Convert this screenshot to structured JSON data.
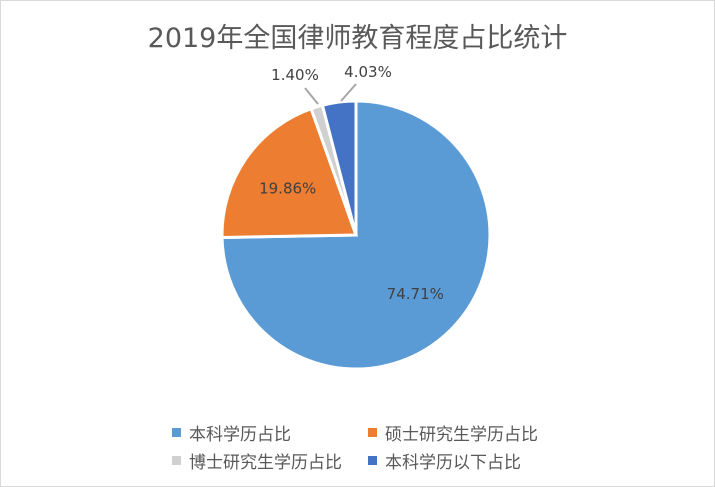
{
  "chart_data": {
    "type": "pie",
    "title": "2019年全国律师教育程度占比统计",
    "categories": [
      "本科学历占比",
      "硕士研究生学历占比",
      "博士研究生学历占比",
      "本科学历以下占比"
    ],
    "values": [
      74.71,
      19.86,
      1.4,
      4.03
    ],
    "labels": [
      "74.71%",
      "19.86%",
      "1.40%",
      "4.03%"
    ],
    "colors": [
      "#5b9bd5",
      "#ed7d31",
      "#d0d0d0",
      "#4472c4"
    ],
    "start_angle": "12 o'clock",
    "direction": "clockwise",
    "legend_position": "bottom"
  }
}
